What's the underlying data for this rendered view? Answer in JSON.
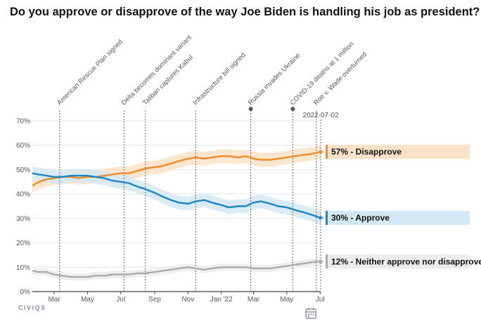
{
  "chart_data": {
    "type": "line",
    "title": "Do you approve or disapprove of the way Joe Biden is handling his job as president?",
    "y_ticks": [
      "0%",
      "10%",
      "20%",
      "30%",
      "40%",
      "50%",
      "60%",
      "70%"
    ],
    "ylim": [
      0,
      70
    ],
    "x_start": "2021-01-20",
    "x_end": "2022-07-02",
    "x_ticks": [
      {
        "label": "Mar",
        "date": "2021-03-01"
      },
      {
        "label": "May",
        "date": "2021-05-01"
      },
      {
        "label": "Jul",
        "date": "2021-07-01"
      },
      {
        "label": "Sep",
        "date": "2021-09-01"
      },
      {
        "label": "Nov",
        "date": "2021-11-01"
      },
      {
        "label": "Jan '22",
        "date": "2022-01-01"
      },
      {
        "label": "Mar",
        "date": "2022-03-01"
      },
      {
        "label": "May",
        "date": "2022-05-01"
      },
      {
        "label": "Jul",
        "date": "2022-07-01"
      }
    ],
    "events": [
      {
        "label": "American Rescue Plan signed",
        "date": "2021-03-11",
        "dot": false
      },
      {
        "label": "Delta becomes dominant variant",
        "date": "2021-07-07",
        "dot": false
      },
      {
        "label": "Taliban captures Kabul",
        "date": "2021-08-15",
        "dot": false
      },
      {
        "label": "Infrastructure bill signed",
        "date": "2021-11-15",
        "dot": false
      },
      {
        "label": "Russia invades Ukraine",
        "date": "2022-02-24",
        "dot": true
      },
      {
        "label": "COVID-19 deaths at 1 million",
        "date": "2022-05-12",
        "dot": true
      },
      {
        "label": "Roe v. Wade overturned",
        "date": "2022-06-24",
        "dot": false
      }
    ],
    "current_date_label": "2022-07-02",
    "series": [
      {
        "name": "Disapprove",
        "end_label": "57% - Disapprove",
        "color": "#ee8a28",
        "band_color": "#fbe2c6",
        "points": [
          [
            "2021-01-20",
            43.5
          ],
          [
            "2021-02-01",
            45.0
          ],
          [
            "2021-02-15",
            46.0
          ],
          [
            "2021-03-01",
            46.5
          ],
          [
            "2021-03-15",
            47.0
          ],
          [
            "2021-04-01",
            47.0
          ],
          [
            "2021-04-15",
            46.5
          ],
          [
            "2021-05-01",
            47.0
          ],
          [
            "2021-05-15",
            47.0
          ],
          [
            "2021-06-01",
            47.5
          ],
          [
            "2021-06-15",
            48.0
          ],
          [
            "2021-07-01",
            48.5
          ],
          [
            "2021-07-15",
            48.5
          ],
          [
            "2021-08-01",
            49.5
          ],
          [
            "2021-08-15",
            50.5
          ],
          [
            "2021-09-01",
            51.0
          ],
          [
            "2021-09-15",
            51.5
          ],
          [
            "2021-10-01",
            52.5
          ],
          [
            "2021-10-15",
            53.5
          ],
          [
            "2021-11-01",
            54.5
          ],
          [
            "2021-11-15",
            55.0
          ],
          [
            "2021-12-01",
            54.5
          ],
          [
            "2021-12-15",
            55.0
          ],
          [
            "2022-01-01",
            55.5
          ],
          [
            "2022-01-15",
            55.5
          ],
          [
            "2022-02-01",
            55.0
          ],
          [
            "2022-02-15",
            55.5
          ],
          [
            "2022-03-01",
            54.5
          ],
          [
            "2022-03-15",
            54.0
          ],
          [
            "2022-04-01",
            54.0
          ],
          [
            "2022-04-15",
            54.5
          ],
          [
            "2022-05-01",
            55.0
          ],
          [
            "2022-05-15",
            55.5
          ],
          [
            "2022-06-01",
            56.0
          ],
          [
            "2022-06-15",
            56.5
          ],
          [
            "2022-07-02",
            57.3
          ]
        ]
      },
      {
        "name": "Approve",
        "end_label": "30% - Approve",
        "color": "#1a86c7",
        "band_color": "#d3e8f5",
        "points": [
          [
            "2021-01-20",
            48.5
          ],
          [
            "2021-02-01",
            48.0
          ],
          [
            "2021-02-15",
            47.5
          ],
          [
            "2021-03-01",
            47.0
          ],
          [
            "2021-03-15",
            47.0
          ],
          [
            "2021-04-01",
            47.5
          ],
          [
            "2021-04-15",
            47.5
          ],
          [
            "2021-05-01",
            47.5
          ],
          [
            "2021-05-15",
            47.0
          ],
          [
            "2021-06-01",
            46.5
          ],
          [
            "2021-06-15",
            45.5
          ],
          [
            "2021-07-01",
            45.0
          ],
          [
            "2021-07-15",
            44.5
          ],
          [
            "2021-08-01",
            43.0
          ],
          [
            "2021-08-15",
            42.0
          ],
          [
            "2021-09-01",
            40.5
          ],
          [
            "2021-09-15",
            39.0
          ],
          [
            "2021-10-01",
            37.5
          ],
          [
            "2021-10-15",
            36.5
          ],
          [
            "2021-11-01",
            36.0
          ],
          [
            "2021-11-15",
            37.0
          ],
          [
            "2021-12-01",
            37.5
          ],
          [
            "2021-12-15",
            36.5
          ],
          [
            "2022-01-01",
            35.5
          ],
          [
            "2022-01-15",
            34.5
          ],
          [
            "2022-02-01",
            35.0
          ],
          [
            "2022-02-15",
            35.0
          ],
          [
            "2022-03-01",
            36.5
          ],
          [
            "2022-03-15",
            37.0
          ],
          [
            "2022-04-01",
            36.0
          ],
          [
            "2022-04-15",
            35.0
          ],
          [
            "2022-05-01",
            34.5
          ],
          [
            "2022-05-15",
            33.5
          ],
          [
            "2022-06-01",
            32.5
          ],
          [
            "2022-06-15",
            31.5
          ],
          [
            "2022-07-02",
            30.2
          ]
        ]
      },
      {
        "name": "Neither approve nor disapprove",
        "end_label": "12% - Neither approve nor disapprove",
        "color": "#aaaaaa",
        "band_color": "#ececec",
        "points": [
          [
            "2021-01-20",
            8.5
          ],
          [
            "2021-02-01",
            8.0
          ],
          [
            "2021-02-15",
            8.0
          ],
          [
            "2021-03-01",
            7.0
          ],
          [
            "2021-03-15",
            6.5
          ],
          [
            "2021-04-01",
            6.0
          ],
          [
            "2021-04-15",
            6.0
          ],
          [
            "2021-05-01",
            6.0
          ],
          [
            "2021-05-15",
            6.5
          ],
          [
            "2021-06-01",
            6.5
          ],
          [
            "2021-06-15",
            7.0
          ],
          [
            "2021-07-01",
            7.0
          ],
          [
            "2021-07-15",
            7.0
          ],
          [
            "2021-08-01",
            7.5
          ],
          [
            "2021-08-15",
            7.5
          ],
          [
            "2021-09-01",
            8.0
          ],
          [
            "2021-09-15",
            8.5
          ],
          [
            "2021-10-01",
            9.0
          ],
          [
            "2021-10-15",
            9.5
          ],
          [
            "2021-11-01",
            10.0
          ],
          [
            "2021-11-15",
            9.5
          ],
          [
            "2021-12-01",
            9.0
          ],
          [
            "2021-12-15",
            9.5
          ],
          [
            "2022-01-01",
            10.0
          ],
          [
            "2022-01-15",
            10.0
          ],
          [
            "2022-02-01",
            10.0
          ],
          [
            "2022-02-15",
            10.0
          ],
          [
            "2022-03-01",
            9.5
          ],
          [
            "2022-03-15",
            9.5
          ],
          [
            "2022-04-01",
            9.5
          ],
          [
            "2022-04-15",
            10.0
          ],
          [
            "2022-05-01",
            10.5
          ],
          [
            "2022-05-15",
            11.0
          ],
          [
            "2022-06-01",
            11.5
          ],
          [
            "2022-06-15",
            12.0
          ],
          [
            "2022-07-02",
            12.3
          ]
        ]
      }
    ]
  },
  "footer": {
    "logo_text": "CIVIQS",
    "calendar_icon": "calendar-icon"
  }
}
